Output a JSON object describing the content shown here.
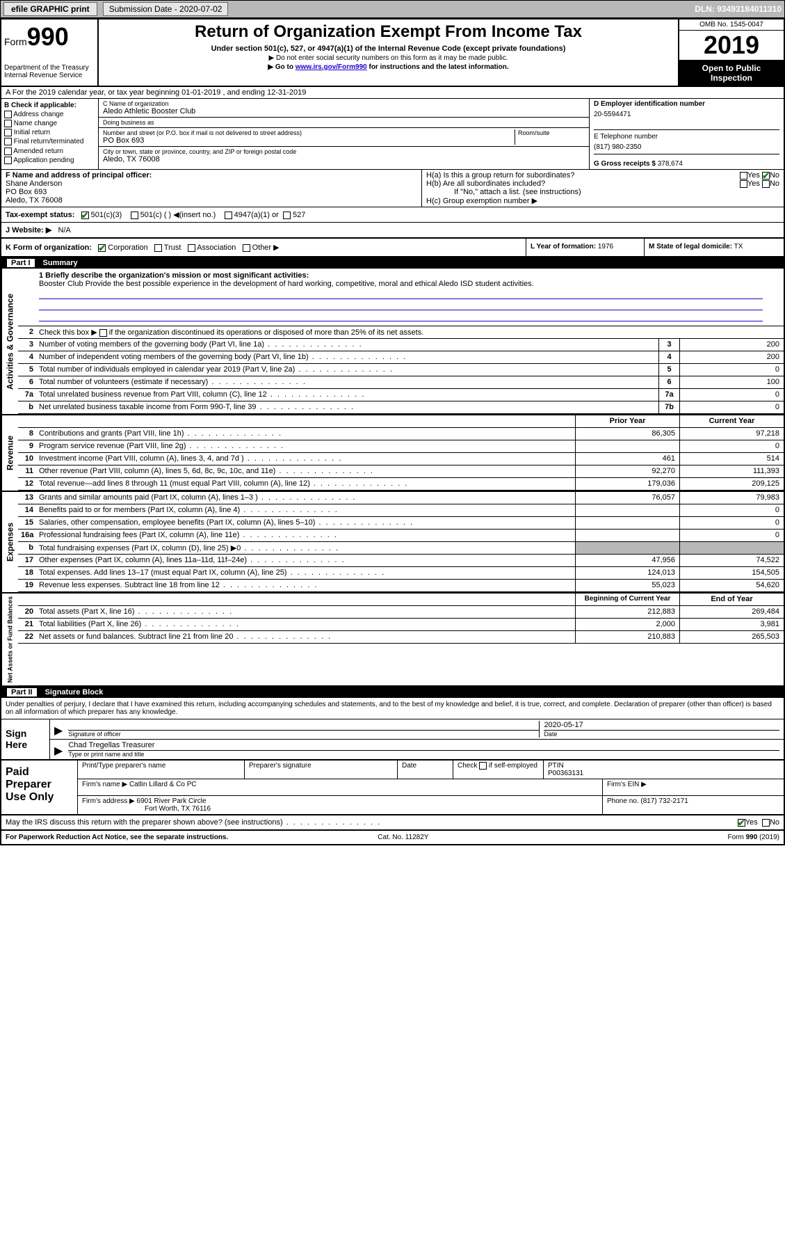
{
  "topbar": {
    "efile": "efile GRAPHIC print",
    "submission_label": "Submission Date - 2020-07-02",
    "dln": "DLN: 93493184011310"
  },
  "header": {
    "form_word": "Form",
    "form_num": "990",
    "dept1": "Department of the Treasury",
    "dept2": "Internal Revenue Service",
    "title": "Return of Organization Exempt From Income Tax",
    "sub1": "Under section 501(c), 527, or 4947(a)(1) of the Internal Revenue Code (except private foundations)",
    "sub2": "▶ Do not enter social security numbers on this form as it may be made public.",
    "sub3_pre": "▶ Go to ",
    "sub3_link": "www.irs.gov/Form990",
    "sub3_post": " for instructions and the latest information.",
    "omb": "OMB No. 1545-0047",
    "year": "2019",
    "open": "Open to Public Inspection"
  },
  "rowA": {
    "text": "A For the 2019 calendar year, or tax year beginning 01-01-2019     , and ending 12-31-2019"
  },
  "B": {
    "head": "B Check if applicable:",
    "opts": [
      "Address change",
      "Name change",
      "Initial return",
      "Final return/terminated",
      "Amended return",
      "Application pending"
    ]
  },
  "C": {
    "name_lbl": "C Name of organization",
    "name": "Aledo Athletic Booster Club",
    "dba_lbl": "Doing business as",
    "dba": "",
    "street_lbl": "Number and street (or P.O. box if mail is not delivered to street address)",
    "room_lbl": "Room/suite",
    "street": "PO Box 693",
    "city_lbl": "City or town, state or province, country, and ZIP or foreign postal code",
    "city": "Aledo, TX  76008"
  },
  "D": {
    "lbl": "D Employer identification number",
    "val": "20-5594471"
  },
  "E": {
    "lbl": "E Telephone number",
    "val": "(817) 980-2350"
  },
  "G": {
    "lbl": "G Gross receipts $",
    "val": "378,674"
  },
  "F": {
    "lbl": "F  Name and address of principal officer:",
    "name": "Shane Anderson",
    "street": "PO Box 693",
    "city": "Aledo, TX  76008"
  },
  "H": {
    "a": "H(a)  Is this a group return for subordinates?",
    "b": "H(b)  Are all subordinates included?",
    "b_note": "If \"No,\" attach a list. (see instructions)",
    "c": "H(c)  Group exemption number ▶",
    "yes": "Yes",
    "no": "No"
  },
  "I": {
    "lbl": "Tax-exempt status:",
    "o1": "501(c)(3)",
    "o2": "501(c) (  ) ◀(insert no.)",
    "o3": "4947(a)(1) or",
    "o4": "527"
  },
  "J": {
    "lbl": "J   Website: ▶",
    "val": "N/A"
  },
  "K": {
    "lbl": "K Form of organization:",
    "o1": "Corporation",
    "o2": "Trust",
    "o3": "Association",
    "o4": "Other ▶"
  },
  "L": {
    "lbl": "L Year of formation:",
    "val": "1976"
  },
  "M": {
    "lbl": "M State of legal domicile:",
    "val": "TX"
  },
  "partI": {
    "num": "Part I",
    "title": "Summary"
  },
  "p1": {
    "l1_lbl": "1   Briefly describe the organization's mission or most significant activities:",
    "l1_txt": "Booster Club Provide the best possible experience in the development of hard working, competitive, moral and ethical Aledo ISD student activities.",
    "l2": "Check this box ▶      if the organization discontinued its operations or disposed of more than 25% of its net assets.",
    "rows_ag": [
      {
        "n": "3",
        "t": "Number of voting members of the governing body (Part VI, line 1a)",
        "b": "3",
        "v": "200"
      },
      {
        "n": "4",
        "t": "Number of independent voting members of the governing body (Part VI, line 1b)",
        "b": "4",
        "v": "200"
      },
      {
        "n": "5",
        "t": "Total number of individuals employed in calendar year 2019 (Part V, line 2a)",
        "b": "5",
        "v": "0"
      },
      {
        "n": "6",
        "t": "Total number of volunteers (estimate if necessary)",
        "b": "6",
        "v": "100"
      },
      {
        "n": "7a",
        "t": "Total unrelated business revenue from Part VIII, column (C), line 12",
        "b": "7a",
        "v": "0"
      },
      {
        "n": "b",
        "t": "Net unrelated business taxable income from Form 990-T, line 39",
        "b": "7b",
        "v": "0"
      }
    ],
    "col_py": "Prior Year",
    "col_cy": "Current Year",
    "rows_rev": [
      {
        "n": "8",
        "t": "Contributions and grants (Part VIII, line 1h)",
        "py": "86,305",
        "cy": "97,218"
      },
      {
        "n": "9",
        "t": "Program service revenue (Part VIII, line 2g)",
        "py": "",
        "cy": "0"
      },
      {
        "n": "10",
        "t": "Investment income (Part VIII, column (A), lines 3, 4, and 7d )",
        "py": "461",
        "cy": "514"
      },
      {
        "n": "11",
        "t": "Other revenue (Part VIII, column (A), lines 5, 6d, 8c, 9c, 10c, and 11e)",
        "py": "92,270",
        "cy": "111,393"
      },
      {
        "n": "12",
        "t": "Total revenue—add lines 8 through 11 (must equal Part VIII, column (A), line 12)",
        "py": "179,036",
        "cy": "209,125"
      }
    ],
    "rows_exp": [
      {
        "n": "13",
        "t": "Grants and similar amounts paid (Part IX, column (A), lines 1–3 )",
        "py": "76,057",
        "cy": "79,983"
      },
      {
        "n": "14",
        "t": "Benefits paid to or for members (Part IX, column (A), line 4)",
        "py": "",
        "cy": "0"
      },
      {
        "n": "15",
        "t": "Salaries, other compensation, employee benefits (Part IX, column (A), lines 5–10)",
        "py": "",
        "cy": "0"
      },
      {
        "n": "16a",
        "t": "Professional fundraising fees (Part IX, column (A), line 11e)",
        "py": "",
        "cy": "0"
      },
      {
        "n": "b",
        "t": "Total fundraising expenses (Part IX, column (D), line 25) ▶0",
        "py": "GREY",
        "cy": "GREY"
      },
      {
        "n": "17",
        "t": "Other expenses (Part IX, column (A), lines 11a–11d, 11f–24e)",
        "py": "47,956",
        "cy": "74,522"
      },
      {
        "n": "18",
        "t": "Total expenses. Add lines 13–17 (must equal Part IX, column (A), line 25)",
        "py": "124,013",
        "cy": "154,505"
      },
      {
        "n": "19",
        "t": "Revenue less expenses. Subtract line 18 from line 12",
        "py": "55,023",
        "cy": "54,620"
      }
    ],
    "col_boy": "Beginning of Current Year",
    "col_eoy": "End of Year",
    "rows_na": [
      {
        "n": "20",
        "t": "Total assets (Part X, line 16)",
        "py": "212,883",
        "cy": "269,484"
      },
      {
        "n": "21",
        "t": "Total liabilities (Part X, line 26)",
        "py": "2,000",
        "cy": "3,981"
      },
      {
        "n": "22",
        "t": "Net assets or fund balances. Subtract line 21 from line 20",
        "py": "210,883",
        "cy": "265,503"
      }
    ],
    "vlabels": {
      "ag": "Activities & Governance",
      "rev": "Revenue",
      "exp": "Expenses",
      "na": "Net Assets or Fund Balances"
    }
  },
  "partII": {
    "num": "Part II",
    "title": "Signature Block"
  },
  "sig": {
    "intro": "Under penalties of perjury, I declare that I have examined this return, including accompanying schedules and statements, and to the best of my knowledge and belief, it is true, correct, and complete. Declaration of preparer (other than officer) is based on all information of which preparer has any knowledge.",
    "sign_here": "Sign Here",
    "sig_officer_lbl": "Signature of officer",
    "date_lbl": "Date",
    "date_val": "2020-05-17",
    "name_val": "Chad Tregellas Treasurer",
    "name_lbl": "Type or print name and title"
  },
  "paid": {
    "title": "Paid Preparer Use Only",
    "h1": "Print/Type preparer's name",
    "h2": "Preparer's signature",
    "h3": "Date",
    "h4_pre": "Check",
    "h4_post": "if self-employed",
    "h5": "PTIN",
    "ptin": "P00363131",
    "firm_name_lbl": "Firm's name    ▶",
    "firm_name": "Catlin Lillard & Co PC",
    "firm_ein_lbl": "Firm's EIN ▶",
    "firm_addr_lbl": "Firm's address ▶",
    "firm_addr1": "6901 River Park Circle",
    "firm_addr2": "Fort Worth, TX  76116",
    "phone_lbl": "Phone no.",
    "phone": "(817) 732-2171",
    "irs_q": "May the IRS discuss this return with the preparer shown above? (see instructions)"
  },
  "footer": {
    "l": "For Paperwork Reduction Act Notice, see the separate instructions.",
    "c": "Cat. No. 11282Y",
    "r": "Form 990 (2019)"
  }
}
